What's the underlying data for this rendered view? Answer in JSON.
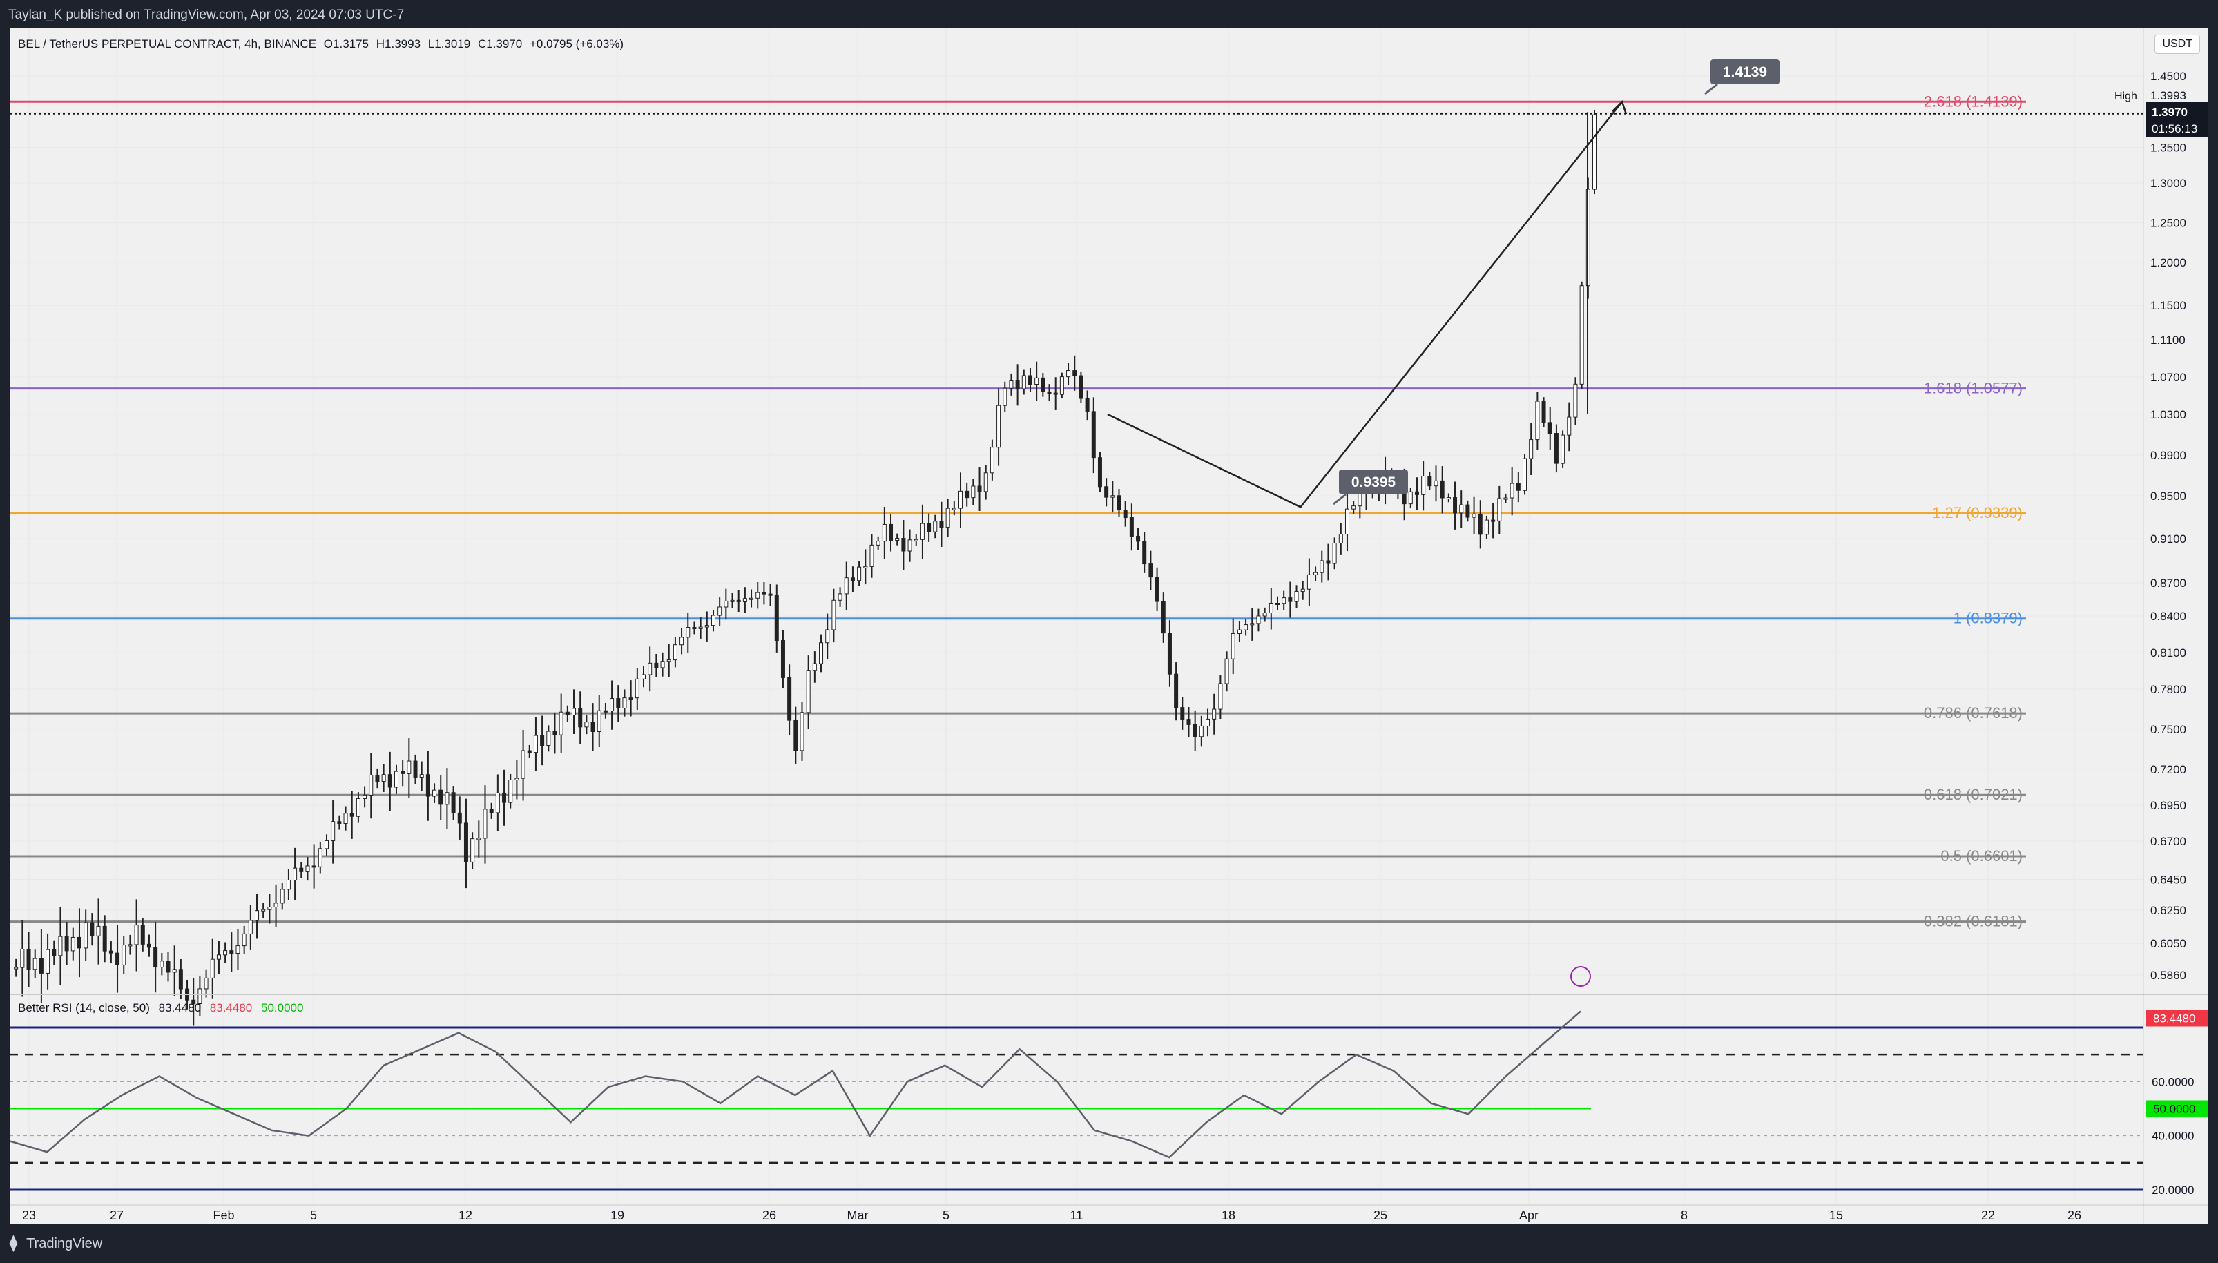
{
  "header": {
    "published": "Taylan_K published on TradingView.com, Apr 03, 2024 07:03 UTC-7"
  },
  "footer": {
    "brand": "TradingView",
    "brand_icon": "tradingview-logo-icon"
  },
  "symbol": {
    "name": "BEL / TetherUS PERPETUAL CONTRACT, 4h, BINANCE",
    "open": "O1.3175",
    "high": "H1.3993",
    "low": "L1.3019",
    "close": "C1.3970",
    "change": "+0.0795 (+6.03%)"
  },
  "currency": "USDT",
  "chart_data": [
    {
      "type": "candlestick",
      "y_ticks": [
        1.45,
        1.3993,
        1.35,
        1.3,
        1.25,
        1.2,
        1.15,
        1.11,
        1.07,
        1.03,
        0.99,
        0.95,
        0.91,
        0.87,
        0.84,
        0.81,
        0.78,
        0.75,
        0.72,
        0.695,
        0.67,
        0.645,
        0.625,
        0.605,
        0.586
      ],
      "y_tick_labels": [
        "1.4500",
        "1.3993",
        "1.3500",
        "1.3000",
        "1.2500",
        "1.2000",
        "1.1500",
        "1.1100",
        "1.0700",
        "1.0300",
        "0.9900",
        "0.9500",
        "0.9100",
        "0.8700",
        "0.8400",
        "0.8100",
        "0.7800",
        "0.7500",
        "0.7200",
        "0.6950",
        "0.6700",
        "0.6450",
        "0.6250",
        "0.6050",
        "0.5860"
      ],
      "x_ticks": [
        "23",
        "27",
        "Feb",
        "5",
        "12",
        "19",
        "26",
        "Mar",
        "5",
        "11",
        "18",
        "25",
        "Apr",
        "8",
        "15",
        "22",
        "26"
      ],
      "high_label": "High",
      "high_value": "1.3993",
      "last_price": "1.3970",
      "countdown": "01:56:13",
      "price_path": [
        [
          0,
          0.59
        ],
        [
          8,
          0.6
        ],
        [
          12,
          0.615
        ],
        [
          16,
          0.598
        ],
        [
          20,
          0.608
        ],
        [
          24,
          0.595
        ],
        [
          28,
          0.57
        ],
        [
          34,
          0.6
        ],
        [
          38,
          0.615
        ],
        [
          42,
          0.635
        ],
        [
          46,
          0.65
        ],
        [
          50,
          0.67
        ],
        [
          54,
          0.695
        ],
        [
          58,
          0.712
        ],
        [
          62,
          0.72
        ],
        [
          66,
          0.71
        ],
        [
          70,
          0.69
        ],
        [
          72,
          0.665
        ],
        [
          76,
          0.69
        ],
        [
          80,
          0.72
        ],
        [
          84,
          0.745
        ],
        [
          88,
          0.76
        ],
        [
          92,
          0.755
        ],
        [
          96,
          0.77
        ],
        [
          100,
          0.79
        ],
        [
          104,
          0.81
        ],
        [
          108,
          0.83
        ],
        [
          112,
          0.845
        ],
        [
          116,
          0.86
        ],
        [
          120,
          0.855
        ],
        [
          124,
          0.73
        ],
        [
          126,
          0.79
        ],
        [
          130,
          0.85
        ],
        [
          134,
          0.885
        ],
        [
          138,
          0.915
        ],
        [
          142,
          0.905
        ],
        [
          146,
          0.925
        ],
        [
          150,
          0.945
        ],
        [
          154,
          0.97
        ],
        [
          157,
          1.06
        ],
        [
          160,
          1.07
        ],
        [
          164,
          1.05
        ],
        [
          167,
          1.08
        ],
        [
          170,
          1.03
        ],
        [
          172,
          0.96
        ],
        [
          175,
          0.935
        ],
        [
          178,
          0.91
        ],
        [
          181,
          0.85
        ],
        [
          184,
          0.77
        ],
        [
          187,
          0.74
        ],
        [
          190,
          0.77
        ],
        [
          193,
          0.82
        ],
        [
          196,
          0.84
        ],
        [
          199,
          0.845
        ],
        [
          202,
          0.86
        ],
        [
          205,
          0.87
        ],
        [
          208,
          0.895
        ],
        [
          211,
          0.93
        ],
        [
          214,
          0.96
        ],
        [
          217,
          0.965
        ],
        [
          220,
          0.95
        ],
        [
          223,
          0.962
        ],
        [
          226,
          0.955
        ],
        [
          229,
          0.935
        ],
        [
          232,
          0.92
        ],
        [
          235,
          0.942
        ],
        [
          238,
          0.96
        ],
        [
          241,
          1.04
        ],
        [
          244,
          0.985
        ],
        [
          247,
          1.06
        ],
        [
          250,
          1.397
        ]
      ],
      "drawn_lines": [
        {
          "from": [
            0.98,
            13
          ],
          "to": [
            0.9395,
            22
          ],
          "label": ""
        },
        {
          "from": [
            0.9395,
            22
          ],
          "to": [
            1.4139,
            37
          ],
          "label": "0.9395"
        }
      ],
      "callouts": [
        "1.4139",
        "0.9395"
      ],
      "fib_levels": [
        {
          "label": "2.618 (1.4139)",
          "value": 1.4139,
          "color": "#e04a6a"
        },
        {
          "label": "1.618 (1.0577)",
          "value": 1.0577,
          "color": "#8a64c8"
        },
        {
          "label": "1.27 (0.9339)",
          "value": 0.9339,
          "color": "#f0a732"
        },
        {
          "label": "1 (0.8379)",
          "value": 0.8379,
          "color": "#4a8fe6"
        },
        {
          "label": "0.786 (0.7618)",
          "value": 0.7618,
          "color": "#888888"
        },
        {
          "label": "0.618 (0.7021)",
          "value": 0.7021,
          "color": "#888888"
        },
        {
          "label": "0.5 (0.6601)",
          "value": 0.6601,
          "color": "#888888"
        },
        {
          "label": "0.382 (0.6181)",
          "value": 0.6181,
          "color": "#888888"
        }
      ]
    },
    {
      "type": "line",
      "title": "Better RSI (14, close, 50)",
      "values_shown": [
        "83.4480",
        "83.4480",
        "50.0000"
      ],
      "ylim": [
        20,
        80
      ],
      "y_tick_labels": [
        "60.0000",
        "40.0000",
        "20.0000"
      ],
      "current": "83.4480",
      "midline": "50.0000",
      "rsi_path": [
        [
          0,
          38
        ],
        [
          10,
          34
        ],
        [
          20,
          46
        ],
        [
          30,
          55
        ],
        [
          40,
          62
        ],
        [
          50,
          54
        ],
        [
          60,
          48
        ],
        [
          70,
          42
        ],
        [
          80,
          40
        ],
        [
          90,
          50
        ],
        [
          100,
          66
        ],
        [
          110,
          72
        ],
        [
          120,
          78
        ],
        [
          130,
          71
        ],
        [
          140,
          58
        ],
        [
          150,
          45
        ],
        [
          160,
          58
        ],
        [
          170,
          62
        ],
        [
          180,
          60
        ],
        [
          190,
          52
        ],
        [
          200,
          62
        ],
        [
          210,
          55
        ],
        [
          220,
          64
        ],
        [
          230,
          40
        ],
        [
          240,
          60
        ],
        [
          250,
          66
        ],
        [
          260,
          58
        ],
        [
          270,
          72
        ],
        [
          280,
          60
        ],
        [
          290,
          42
        ],
        [
          300,
          38
        ],
        [
          310,
          32
        ],
        [
          320,
          45
        ],
        [
          330,
          55
        ],
        [
          340,
          48
        ],
        [
          350,
          60
        ],
        [
          360,
          70
        ],
        [
          370,
          64
        ],
        [
          380,
          52
        ],
        [
          390,
          48
        ],
        [
          400,
          62
        ],
        [
          410,
          74
        ],
        [
          420,
          86
        ]
      ],
      "colors": {
        "line": "#5d606b",
        "overbought": "#f23645",
        "oversold_fill": "#ef5350",
        "mid_green": "#00e600"
      }
    }
  ]
}
